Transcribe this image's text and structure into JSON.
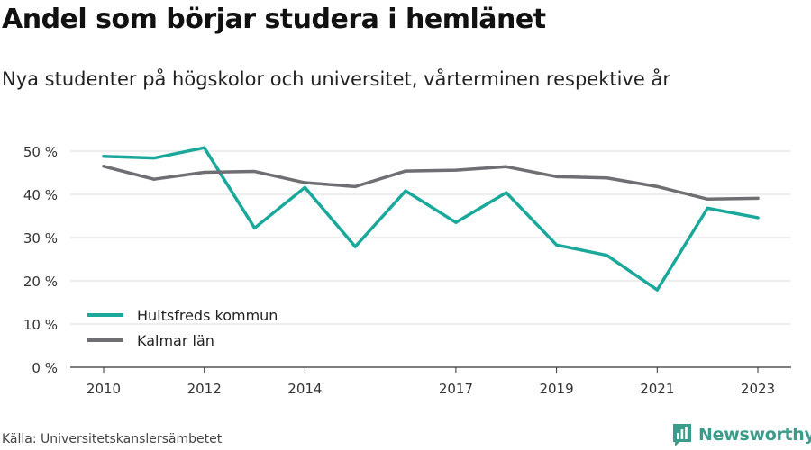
{
  "title": "Andel som börjar studera i hemlänet",
  "subtitle": "Nya studenter på högskolor och universitet, vårterminen respektive år",
  "source": "Källa: Universitetskanslersämbetet",
  "brand": {
    "name": "Newsworthy",
    "icon": "bar-chart-logo-icon",
    "color": "#3c9c8b"
  },
  "chart_data": {
    "type": "line",
    "title": "Andel som börjar studera i hemlänet",
    "subtitle": "Nya studenter på högskolor och universitet, vårterminen respektive år",
    "x": [
      2010,
      2011,
      2012,
      2013,
      2014,
      2015,
      2016,
      2017,
      2018,
      2019,
      2020,
      2021,
      2022,
      2023
    ],
    "x_tick_labels": [
      "2010",
      "2012",
      "2014",
      "2017",
      "2019",
      "2021",
      "2023"
    ],
    "x_tick_values": [
      2010,
      2012,
      2014,
      2017,
      2019,
      2021,
      2023
    ],
    "y_tick_values": [
      0,
      10,
      20,
      30,
      40,
      50
    ],
    "y_tick_labels": [
      "0 %",
      "10 %",
      "20 %",
      "30 %",
      "40 %",
      "50 %"
    ],
    "ylim": [
      0,
      50
    ],
    "xlim": [
      2010,
      2023
    ],
    "grid": true,
    "legend_position": "bottom-left",
    "series": [
      {
        "name": "Hultsfreds kommun",
        "color": "#1aa89b",
        "values": [
          48.8,
          48.4,
          50.8,
          32.2,
          41.6,
          27.9,
          40.8,
          33.5,
          40.4,
          28.3,
          25.9,
          17.9,
          36.8,
          34.6
        ]
      },
      {
        "name": "Kalmar län",
        "color": "#6e6e73",
        "values": [
          46.5,
          43.5,
          45.1,
          45.3,
          42.7,
          41.8,
          45.4,
          45.6,
          46.4,
          44.1,
          43.8,
          41.8,
          38.9,
          39.1
        ]
      }
    ]
  }
}
